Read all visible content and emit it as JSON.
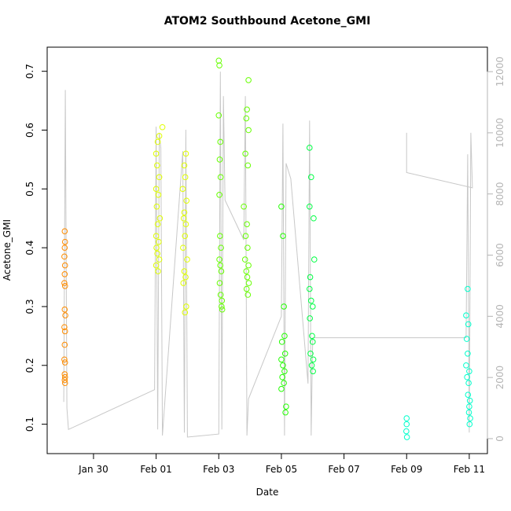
{
  "chart_data": {
    "type": "scatter",
    "title": "ATOM2 Southbound Acetone_GMI",
    "xlabel": "Date",
    "ylabel": "Acetone_GMI",
    "xlim": [
      28.52,
      42.58
    ],
    "xticks": [
      {
        "value": 30,
        "label": "Jan 30"
      },
      {
        "value": 32,
        "label": "Feb 01"
      },
      {
        "value": 34,
        "label": "Feb 03"
      },
      {
        "value": 36,
        "label": "Feb 05"
      },
      {
        "value": 38,
        "label": "Feb 07"
      },
      {
        "value": 40,
        "label": "Feb 09"
      },
      {
        "value": 42,
        "label": "Feb 11"
      }
    ],
    "ylim": [
      0.05,
      0.741
    ],
    "yticks": [
      0.1,
      0.2,
      0.3,
      0.4,
      0.5,
      0.6,
      0.7
    ],
    "y2lim": [
      -490,
      12800
    ],
    "y2ticks": [
      0,
      2000,
      4000,
      6000,
      8000,
      10000,
      12000
    ],
    "y2color": "#b4b4b4",
    "series": [
      {
        "type": "line",
        "axis": "y2",
        "color": "#c8c8c8",
        "x": [
          29.05,
          29.1,
          29.15,
          29.2,
          31.95,
          32.0,
          32.05,
          32.1,
          32.15,
          32.2,
          32.85,
          32.9,
          32.95,
          33.0,
          34.0,
          34.05,
          34.1,
          34.15,
          34.2,
          34.8,
          34.85,
          34.9,
          34.95,
          36.0,
          36.05,
          36.1,
          36.15,
          36.3,
          36.85,
          36.9,
          36.95,
          37.0,
          41.9,
          41.95,
          42.0,
          42.05,
          42.1,
          40.0,
          40.0
        ],
        "values": [
          1200,
          11400,
          1000,
          300,
          1600,
          10200,
          300,
          10000,
          9500,
          100,
          9400,
          200,
          10100,
          50,
          150,
          12000,
          300,
          11200,
          7800,
          6500,
          11200,
          100,
          1300,
          4000,
          10300,
          100,
          9000,
          8500,
          1800,
          10400,
          100,
          3300,
          3300,
          9300,
          200,
          10000,
          8200,
          8700,
          10000
        ]
      },
      {
        "color": "#ff8c00",
        "x": [
          29.08,
          29.09,
          29.08,
          29.07,
          29.09,
          29.08,
          29.07,
          29.09,
          29.08,
          29.1,
          29.07,
          29.09,
          29.08,
          29.07,
          29.09,
          29.08,
          29.09,
          29.08,
          29.09
        ],
        "values": [
          0.428,
          0.41,
          0.4,
          0.385,
          0.37,
          0.355,
          0.34,
          0.335,
          0.295,
          0.285,
          0.265,
          0.258,
          0.235,
          0.21,
          0.205,
          0.185,
          0.18,
          0.175,
          0.17
        ]
      },
      {
        "color": "#e0ff00",
        "x": [
          32.2,
          32.1,
          32.05,
          32.0,
          32.03,
          32.1,
          32.0,
          32.07,
          32.02,
          32.12,
          32.05,
          32.0,
          32.08,
          32.01,
          32.04,
          32.1,
          32.0,
          32.06,
          32.95,
          32.9,
          32.93,
          32.85,
          32.97,
          32.9,
          32.88,
          32.95,
          32.92,
          32.86,
          32.99,
          32.9,
          32.94,
          32.87,
          32.96,
          32.92
        ],
        "values": [
          0.605,
          0.59,
          0.58,
          0.56,
          0.54,
          0.52,
          0.5,
          0.49,
          0.47,
          0.45,
          0.44,
          0.42,
          0.41,
          0.4,
          0.39,
          0.38,
          0.37,
          0.36,
          0.56,
          0.54,
          0.52,
          0.5,
          0.48,
          0.46,
          0.45,
          0.44,
          0.42,
          0.4,
          0.38,
          0.36,
          0.35,
          0.34,
          0.3,
          0.29
        ]
      },
      {
        "color": "#66ff00",
        "x": [
          34.0,
          34.02,
          34.0,
          34.05,
          34.03,
          34.06,
          34.02,
          34.04,
          34.07,
          34.02,
          34.05,
          34.08,
          34.03,
          34.06,
          34.1,
          34.09,
          34.11,
          34.95,
          34.9,
          34.88,
          34.95,
          34.85,
          34.93,
          34.8,
          34.9,
          34.86,
          34.92,
          34.84,
          34.95,
          34.88,
          34.91,
          34.96,
          34.89,
          34.93
        ],
        "values": [
          0.718,
          0.71,
          0.625,
          0.58,
          0.55,
          0.52,
          0.49,
          0.42,
          0.4,
          0.38,
          0.37,
          0.36,
          0.34,
          0.32,
          0.31,
          0.3,
          0.295,
          0.685,
          0.635,
          0.62,
          0.6,
          0.56,
          0.54,
          0.47,
          0.44,
          0.42,
          0.4,
          0.38,
          0.37,
          0.36,
          0.35,
          0.34,
          0.33,
          0.32
        ]
      },
      {
        "color": "#22ff00",
        "x": [
          36.0,
          36.05,
          36.08,
          36.1,
          36.02,
          36.12,
          36.0,
          36.05,
          36.1,
          36.03,
          36.08,
          36.0,
          36.15,
          36.13
        ],
        "values": [
          0.47,
          0.42,
          0.3,
          0.25,
          0.24,
          0.22,
          0.21,
          0.2,
          0.19,
          0.18,
          0.17,
          0.16,
          0.13,
          0.12
        ]
      },
      {
        "color": "#00ff44",
        "x": [
          36.9,
          36.95,
          36.9,
          37.03,
          37.05,
          36.92,
          36.9,
          36.95,
          37.0,
          36.91,
          36.98,
          37.0,
          36.93,
          37.02,
          36.97,
          37.01
        ],
        "values": [
          0.57,
          0.52,
          0.47,
          0.45,
          0.38,
          0.35,
          0.33,
          0.31,
          0.3,
          0.28,
          0.25,
          0.24,
          0.22,
          0.21,
          0.2,
          0.19
        ]
      },
      {
        "color": "#00ffcc",
        "x": [
          40.0,
          40.0,
          39.99,
          40.01,
          41.95,
          41.9,
          41.97,
          41.92,
          41.95,
          41.9,
          42.0,
          41.93,
          41.98,
          41.96,
          42.02,
          42.0,
          41.99,
          42.03,
          42.01
        ],
        "values": [
          0.11,
          0.1,
          0.088,
          0.078,
          0.33,
          0.285,
          0.27,
          0.245,
          0.22,
          0.2,
          0.19,
          0.18,
          0.17,
          0.15,
          0.14,
          0.13,
          0.12,
          0.11,
          0.1
        ]
      }
    ]
  }
}
